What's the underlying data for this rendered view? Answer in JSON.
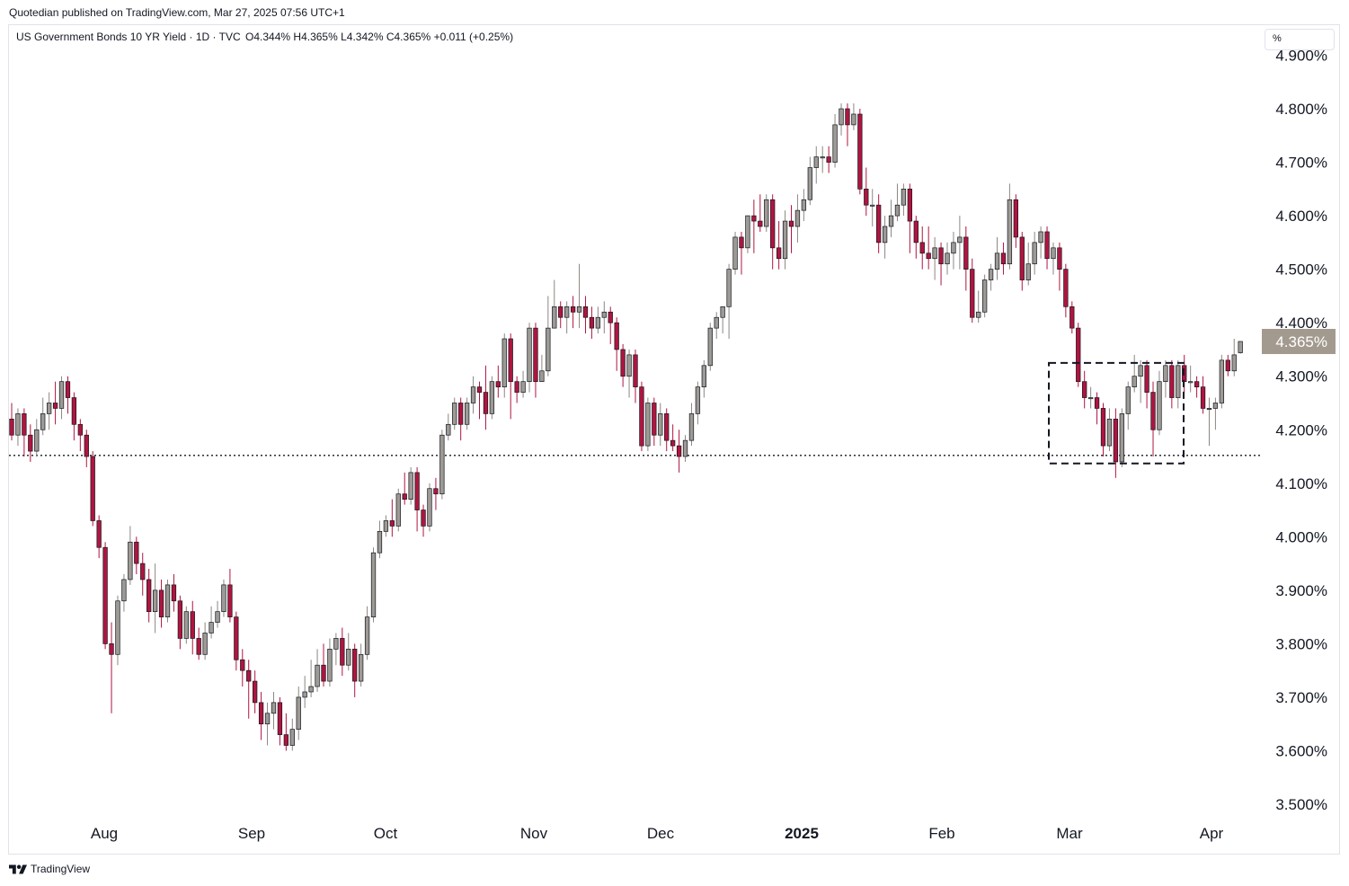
{
  "header": {
    "published": "Quotedian published on TradingView.com, Mar 27, 2025 07:56 UTC+1"
  },
  "legend": {
    "symbol": "US Government Bonds 10 YR Yield · 1D · TVC",
    "open": "O4.344%",
    "high": "H4.365%",
    "low": "L4.342%",
    "close": "C4.365%",
    "change": "+0.011 (+0.25%)"
  },
  "unit_button": "%",
  "footer": {
    "brand": "TradingView"
  },
  "colors": {
    "up": "#9e9a94",
    "down": "#b0153f",
    "outline": "#131722",
    "price_tag_bg": "#a39a8f",
    "support_line": "#131722"
  },
  "chart_data": {
    "type": "candlestick",
    "title": "US Government Bonds 10 YR Yield",
    "ylabel": "%",
    "ylim": [
      3.48,
      4.91
    ],
    "y_ticks": [
      "4.900%",
      "4.800%",
      "4.700%",
      "4.600%",
      "4.500%",
      "4.400%",
      "4.300%",
      "4.200%",
      "4.100%",
      "4.000%",
      "3.900%",
      "3.800%",
      "3.700%",
      "3.600%",
      "3.500%"
    ],
    "x_ticks": [
      "Aug",
      "Sep",
      "Oct",
      "Nov",
      "Dec",
      "2025",
      "Feb",
      "Mar",
      "Apr"
    ],
    "last_price_label": "4.365%",
    "support_level": 4.152,
    "consolidation_box": {
      "x_start": 1167,
      "x_end": 1317,
      "y_low": 4.137,
      "y_high": 4.325
    },
    "bar_x_start": 13,
    "bar_x_step": 6.94,
    "bars": [
      [
        4.22,
        4.19,
        4.25,
        4.18
      ],
      [
        4.19,
        4.23,
        4.24,
        4.17
      ],
      [
        4.23,
        4.19,
        4.24,
        4.15
      ],
      [
        4.19,
        4.16,
        4.21,
        4.14
      ],
      [
        4.16,
        4.2,
        4.22,
        4.15
      ],
      [
        4.2,
        4.23,
        4.26,
        4.19
      ],
      [
        4.23,
        4.25,
        4.27,
        4.2
      ],
      [
        4.25,
        4.24,
        4.29,
        4.21
      ],
      [
        4.24,
        4.29,
        4.3,
        4.22
      ],
      [
        4.29,
        4.26,
        4.3,
        4.23
      ],
      [
        4.26,
        4.21,
        4.27,
        4.18
      ],
      [
        4.21,
        4.19,
        4.22,
        4.16
      ],
      [
        4.19,
        4.15,
        4.2,
        4.13
      ],
      [
        4.15,
        4.03,
        4.16,
        4.02
      ],
      [
        4.03,
        3.98,
        4.04,
        3.96
      ],
      [
        3.98,
        3.8,
        3.99,
        3.79
      ],
      [
        3.8,
        3.78,
        3.84,
        3.67
      ],
      [
        3.78,
        3.88,
        3.89,
        3.76
      ],
      [
        3.88,
        3.92,
        3.93,
        3.86
      ],
      [
        3.92,
        3.99,
        4.02,
        3.91
      ],
      [
        3.99,
        3.95,
        4.0,
        3.93
      ],
      [
        3.95,
        3.92,
        3.97,
        3.89
      ],
      [
        3.92,
        3.86,
        3.94,
        3.84
      ],
      [
        3.86,
        3.9,
        3.95,
        3.82
      ],
      [
        3.9,
        3.85,
        3.92,
        3.83
      ],
      [
        3.85,
        3.91,
        3.92,
        3.84
      ],
      [
        3.91,
        3.88,
        3.93,
        3.86
      ],
      [
        3.88,
        3.81,
        3.89,
        3.79
      ],
      [
        3.81,
        3.86,
        3.87,
        3.8
      ],
      [
        3.86,
        3.81,
        3.88,
        3.78
      ],
      [
        3.81,
        3.78,
        3.83,
        3.77
      ],
      [
        3.78,
        3.82,
        3.84,
        3.77
      ],
      [
        3.82,
        3.84,
        3.87,
        3.81
      ],
      [
        3.84,
        3.86,
        3.88,
        3.83
      ],
      [
        3.86,
        3.91,
        3.92,
        3.85
      ],
      [
        3.91,
        3.85,
        3.94,
        3.84
      ],
      [
        3.85,
        3.77,
        3.86,
        3.75
      ],
      [
        3.77,
        3.75,
        3.79,
        3.72
      ],
      [
        3.75,
        3.73,
        3.77,
        3.66
      ],
      [
        3.73,
        3.69,
        3.75,
        3.67
      ],
      [
        3.69,
        3.65,
        3.71,
        3.62
      ],
      [
        3.65,
        3.67,
        3.69,
        3.61
      ],
      [
        3.67,
        3.69,
        3.71,
        3.64
      ],
      [
        3.69,
        3.63,
        3.7,
        3.61
      ],
      [
        3.63,
        3.61,
        3.67,
        3.6
      ],
      [
        3.61,
        3.64,
        3.66,
        3.6
      ],
      [
        3.64,
        3.7,
        3.72,
        3.62
      ],
      [
        3.7,
        3.71,
        3.74,
        3.68
      ],
      [
        3.71,
        3.72,
        3.77,
        3.7
      ],
      [
        3.72,
        3.76,
        3.79,
        3.71
      ],
      [
        3.76,
        3.73,
        3.8,
        3.72
      ],
      [
        3.73,
        3.79,
        3.81,
        3.72
      ],
      [
        3.79,
        3.81,
        3.82,
        3.76
      ],
      [
        3.81,
        3.76,
        3.83,
        3.74
      ],
      [
        3.76,
        3.79,
        3.82,
        3.75
      ],
      [
        3.79,
        3.73,
        3.8,
        3.7
      ],
      [
        3.73,
        3.78,
        3.8,
        3.72
      ],
      [
        3.78,
        3.85,
        3.87,
        3.77
      ],
      [
        3.85,
        3.97,
        3.98,
        3.84
      ],
      [
        3.97,
        4.01,
        4.03,
        3.96
      ],
      [
        4.01,
        4.03,
        4.04,
        4.0
      ],
      [
        4.03,
        4.02,
        4.07,
        4.0
      ],
      [
        4.02,
        4.08,
        4.09,
        4.01
      ],
      [
        4.08,
        4.07,
        4.12,
        4.06
      ],
      [
        4.07,
        4.12,
        4.13,
        4.06
      ],
      [
        4.12,
        4.05,
        4.13,
        4.01
      ],
      [
        4.05,
        4.02,
        4.06,
        4.0
      ],
      [
        4.02,
        4.09,
        4.1,
        4.01
      ],
      [
        4.09,
        4.08,
        4.11,
        4.05
      ],
      [
        4.08,
        4.19,
        4.2,
        4.07
      ],
      [
        4.19,
        4.21,
        4.23,
        4.18
      ],
      [
        4.21,
        4.25,
        4.26,
        4.2
      ],
      [
        4.25,
        4.21,
        4.26,
        4.18
      ],
      [
        4.21,
        4.25,
        4.26,
        4.2
      ],
      [
        4.25,
        4.28,
        4.3,
        4.23
      ],
      [
        4.28,
        4.27,
        4.29,
        4.22
      ],
      [
        4.27,
        4.23,
        4.32,
        4.2
      ],
      [
        4.23,
        4.29,
        4.3,
        4.22
      ],
      [
        4.29,
        4.28,
        4.32,
        4.26
      ],
      [
        4.28,
        4.37,
        4.38,
        4.26
      ],
      [
        4.37,
        4.29,
        4.38,
        4.22
      ],
      [
        4.29,
        4.27,
        4.3,
        4.25
      ],
      [
        4.27,
        4.29,
        4.31,
        4.26
      ],
      [
        4.29,
        4.39,
        4.4,
        4.27
      ],
      [
        4.39,
        4.29,
        4.4,
        4.26
      ],
      [
        4.29,
        4.31,
        4.34,
        4.29
      ],
      [
        4.31,
        4.39,
        4.45,
        4.3
      ],
      [
        4.39,
        4.43,
        4.48,
        4.39
      ],
      [
        4.43,
        4.41,
        4.44,
        4.39
      ],
      [
        4.41,
        4.43,
        4.44,
        4.38
      ],
      [
        4.43,
        4.42,
        4.45,
        4.39
      ],
      [
        4.42,
        4.43,
        4.51,
        4.39
      ],
      [
        4.43,
        4.41,
        4.45,
        4.38
      ],
      [
        4.41,
        4.39,
        4.43,
        4.37
      ],
      [
        4.39,
        4.41,
        4.43,
        4.38
      ],
      [
        4.41,
        4.42,
        4.44,
        4.38
      ],
      [
        4.42,
        4.4,
        4.43,
        4.36
      ],
      [
        4.4,
        4.35,
        4.41,
        4.31
      ],
      [
        4.35,
        4.3,
        4.36,
        4.28
      ],
      [
        4.3,
        4.34,
        4.35,
        4.26
      ],
      [
        4.34,
        4.28,
        4.35,
        4.25
      ],
      [
        4.28,
        4.17,
        4.29,
        4.16
      ],
      [
        4.17,
        4.25,
        4.26,
        4.16
      ],
      [
        4.25,
        4.19,
        4.26,
        4.17
      ],
      [
        4.19,
        4.23,
        4.25,
        4.17
      ],
      [
        4.23,
        4.18,
        4.24,
        4.16
      ],
      [
        4.18,
        4.17,
        4.21,
        4.16
      ],
      [
        4.17,
        4.15,
        4.2,
        4.12
      ],
      [
        4.15,
        4.18,
        4.19,
        4.14
      ],
      [
        4.18,
        4.23,
        4.25,
        4.17
      ],
      [
        4.23,
        4.28,
        4.29,
        4.21
      ],
      [
        4.28,
        4.32,
        4.33,
        4.26
      ],
      [
        4.32,
        4.39,
        4.4,
        4.31
      ],
      [
        4.39,
        4.41,
        4.42,
        4.37
      ],
      [
        4.41,
        4.43,
        4.43,
        4.38
      ],
      [
        4.43,
        4.5,
        4.51,
        4.37
      ],
      [
        4.5,
        4.56,
        4.57,
        4.49
      ],
      [
        4.56,
        4.54,
        4.57,
        4.49
      ],
      [
        4.54,
        4.6,
        4.6,
        4.53
      ],
      [
        4.6,
        4.59,
        4.63,
        4.53
      ],
      [
        4.59,
        4.58,
        4.64,
        4.57
      ],
      [
        4.58,
        4.63,
        4.64,
        4.57
      ],
      [
        4.63,
        4.54,
        4.64,
        4.5
      ],
      [
        4.54,
        4.52,
        4.59,
        4.5
      ],
      [
        4.52,
        4.59,
        4.61,
        4.5
      ],
      [
        4.59,
        4.58,
        4.62,
        4.53
      ],
      [
        4.58,
        4.61,
        4.64,
        4.55
      ],
      [
        4.61,
        4.63,
        4.65,
        4.59
      ],
      [
        4.63,
        4.69,
        4.71,
        4.62
      ],
      [
        4.69,
        4.71,
        4.73,
        4.66
      ],
      [
        4.71,
        4.71,
        4.73,
        4.68
      ],
      [
        4.71,
        4.7,
        4.73,
        4.68
      ],
      [
        4.7,
        4.77,
        4.79,
        4.69
      ],
      [
        4.77,
        4.8,
        4.81,
        4.75
      ],
      [
        4.8,
        4.77,
        4.81,
        4.73
      ],
      [
        4.77,
        4.79,
        4.81,
        4.76
      ],
      [
        4.79,
        4.65,
        4.8,
        4.64
      ],
      [
        4.65,
        4.62,
        4.69,
        4.6
      ],
      [
        4.62,
        4.62,
        4.65,
        4.58
      ],
      [
        4.62,
        4.55,
        4.64,
        4.53
      ],
      [
        4.55,
        4.58,
        4.6,
        4.52
      ],
      [
        4.58,
        4.6,
        4.63,
        4.56
      ],
      [
        4.6,
        4.62,
        4.66,
        4.59
      ],
      [
        4.62,
        4.65,
        4.66,
        4.6
      ],
      [
        4.65,
        4.59,
        4.66,
        4.53
      ],
      [
        4.59,
        4.55,
        4.6,
        4.52
      ],
      [
        4.55,
        4.53,
        4.58,
        4.5
      ],
      [
        4.53,
        4.52,
        4.58,
        4.5
      ],
      [
        4.52,
        4.54,
        4.56,
        4.48
      ],
      [
        4.54,
        4.51,
        4.55,
        4.47
      ],
      [
        4.51,
        4.53,
        4.55,
        4.49
      ],
      [
        4.53,
        4.55,
        4.57,
        4.5
      ],
      [
        4.55,
        4.56,
        4.6,
        4.5
      ],
      [
        4.56,
        4.5,
        4.58,
        4.46
      ],
      [
        4.5,
        4.41,
        4.52,
        4.4
      ],
      [
        4.41,
        4.42,
        4.46,
        4.4
      ],
      [
        4.42,
        4.48,
        4.49,
        4.41
      ],
      [
        4.48,
        4.5,
        4.51,
        4.46
      ],
      [
        4.5,
        4.53,
        4.56,
        4.48
      ],
      [
        4.53,
        4.51,
        4.55,
        4.49
      ],
      [
        4.51,
        4.63,
        4.66,
        4.5
      ],
      [
        4.63,
        4.56,
        4.64,
        4.54
      ],
      [
        4.56,
        4.48,
        4.57,
        4.46
      ],
      [
        4.48,
        4.51,
        4.55,
        4.47
      ],
      [
        4.51,
        4.55,
        4.57,
        4.49
      ],
      [
        4.55,
        4.57,
        4.58,
        4.52
      ],
      [
        4.57,
        4.52,
        4.58,
        4.5
      ],
      [
        4.52,
        4.54,
        4.55,
        4.49
      ],
      [
        4.54,
        4.5,
        4.55,
        4.46
      ],
      [
        4.5,
        4.43,
        4.51,
        4.41
      ],
      [
        4.43,
        4.39,
        4.44,
        4.38
      ],
      [
        4.39,
        4.29,
        4.4,
        4.28
      ],
      [
        4.29,
        4.26,
        4.31,
        4.24
      ],
      [
        4.26,
        4.26,
        4.28,
        4.24
      ],
      [
        4.26,
        4.24,
        4.27,
        4.21
      ],
      [
        4.24,
        4.17,
        4.25,
        4.15
      ],
      [
        4.17,
        4.22,
        4.24,
        4.16
      ],
      [
        4.22,
        4.14,
        4.24,
        4.11
      ],
      [
        4.14,
        4.23,
        4.24,
        4.13
      ],
      [
        4.23,
        4.28,
        4.29,
        4.2
      ],
      [
        4.28,
        4.3,
        4.34,
        4.27
      ],
      [
        4.3,
        4.32,
        4.33,
        4.25
      ],
      [
        4.32,
        4.27,
        4.33,
        4.24
      ],
      [
        4.27,
        4.2,
        4.29,
        4.15
      ],
      [
        4.2,
        4.29,
        4.31,
        4.19
      ],
      [
        4.29,
        4.32,
        4.33,
        4.26
      ],
      [
        4.32,
        4.26,
        4.33,
        4.24
      ],
      [
        4.26,
        4.32,
        4.33,
        4.24
      ],
      [
        4.32,
        4.29,
        4.34,
        4.27
      ],
      [
        4.29,
        4.29,
        4.32,
        4.27
      ],
      [
        4.29,
        4.28,
        4.3,
        4.26
      ],
      [
        4.28,
        4.24,
        4.3,
        4.23
      ],
      [
        4.24,
        4.24,
        4.26,
        4.17
      ],
      [
        4.24,
        4.25,
        4.26,
        4.2
      ],
      [
        4.25,
        4.33,
        4.34,
        4.24
      ],
      [
        4.33,
        4.31,
        4.34,
        4.3
      ],
      [
        4.31,
        4.34,
        4.37,
        4.3
      ],
      [
        4.344,
        4.365,
        4.365,
        4.342
      ]
    ]
  }
}
